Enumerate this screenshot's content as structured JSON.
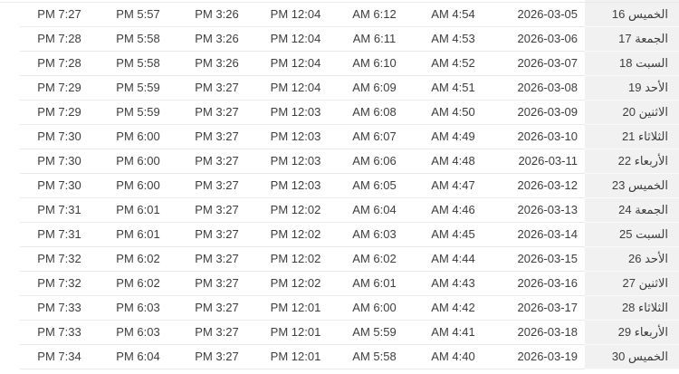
{
  "colors": {
    "text": "#3d3d3d",
    "row_border": "#e9e9e9",
    "day_column_bg": "#f1f1f1",
    "day_column_border": "#fbfbfb"
  },
  "table": {
    "rows": [
      {
        "isha": "PM 7:27",
        "maghrib": "PM 5:57",
        "asr": "PM 3:26",
        "dhuhr": "PM 12:04",
        "sunrise": "AM 6:12",
        "fajr": "AM 4:54",
        "date": "2026-03-05",
        "day_num": "16",
        "day_name": "الخميس"
      },
      {
        "isha": "PM 7:28",
        "maghrib": "PM 5:58",
        "asr": "PM 3:26",
        "dhuhr": "PM 12:04",
        "sunrise": "AM 6:11",
        "fajr": "AM 4:53",
        "date": "2026-03-06",
        "day_num": "17",
        "day_name": "الجمعة"
      },
      {
        "isha": "PM 7:28",
        "maghrib": "PM 5:58",
        "asr": "PM 3:26",
        "dhuhr": "PM 12:04",
        "sunrise": "AM 6:10",
        "fajr": "AM 4:52",
        "date": "2026-03-07",
        "day_num": "18",
        "day_name": "السبت"
      },
      {
        "isha": "PM 7:29",
        "maghrib": "PM 5:59",
        "asr": "PM 3:27",
        "dhuhr": "PM 12:04",
        "sunrise": "AM 6:09",
        "fajr": "AM 4:51",
        "date": "2026-03-08",
        "day_num": "19",
        "day_name": "الأحد"
      },
      {
        "isha": "PM 7:29",
        "maghrib": "PM 5:59",
        "asr": "PM 3:27",
        "dhuhr": "PM 12:03",
        "sunrise": "AM 6:08",
        "fajr": "AM 4:50",
        "date": "2026-03-09",
        "day_num": "20",
        "day_name": "الاثنين"
      },
      {
        "isha": "PM 7:30",
        "maghrib": "PM 6:00",
        "asr": "PM 3:27",
        "dhuhr": "PM 12:03",
        "sunrise": "AM 6:07",
        "fajr": "AM 4:49",
        "date": "2026-03-10",
        "day_num": "21",
        "day_name": "الثلاثاء"
      },
      {
        "isha": "PM 7:30",
        "maghrib": "PM 6:00",
        "asr": "PM 3:27",
        "dhuhr": "PM 12:03",
        "sunrise": "AM 6:06",
        "fajr": "AM 4:48",
        "date": "2026-03-11",
        "day_num": "22",
        "day_name": "الأربعاء"
      },
      {
        "isha": "PM 7:30",
        "maghrib": "PM 6:00",
        "asr": "PM 3:27",
        "dhuhr": "PM 12:03",
        "sunrise": "AM 6:05",
        "fajr": "AM 4:47",
        "date": "2026-03-12",
        "day_num": "23",
        "day_name": "الخميس"
      },
      {
        "isha": "PM 7:31",
        "maghrib": "PM 6:01",
        "asr": "PM 3:27",
        "dhuhr": "PM 12:02",
        "sunrise": "AM 6:04",
        "fajr": "AM 4:46",
        "date": "2026-03-13",
        "day_num": "24",
        "day_name": "الجمعة"
      },
      {
        "isha": "PM 7:31",
        "maghrib": "PM 6:01",
        "asr": "PM 3:27",
        "dhuhr": "PM 12:02",
        "sunrise": "AM 6:03",
        "fajr": "AM 4:45",
        "date": "2026-03-14",
        "day_num": "25",
        "day_name": "السبت"
      },
      {
        "isha": "PM 7:32",
        "maghrib": "PM 6:02",
        "asr": "PM 3:27",
        "dhuhr": "PM 12:02",
        "sunrise": "AM 6:02",
        "fajr": "AM 4:44",
        "date": "2026-03-15",
        "day_num": "26",
        "day_name": "الأحد"
      },
      {
        "isha": "PM 7:32",
        "maghrib": "PM 6:02",
        "asr": "PM 3:27",
        "dhuhr": "PM 12:02",
        "sunrise": "AM 6:01",
        "fajr": "AM 4:43",
        "date": "2026-03-16",
        "day_num": "27",
        "day_name": "الاثنين"
      },
      {
        "isha": "PM 7:33",
        "maghrib": "PM 6:03",
        "asr": "PM 3:27",
        "dhuhr": "PM 12:01",
        "sunrise": "AM 6:00",
        "fajr": "AM 4:42",
        "date": "2026-03-17",
        "day_num": "28",
        "day_name": "الثلاثاء"
      },
      {
        "isha": "PM 7:33",
        "maghrib": "PM 6:03",
        "asr": "PM 3:27",
        "dhuhr": "PM 12:01",
        "sunrise": "AM 5:59",
        "fajr": "AM 4:41",
        "date": "2026-03-18",
        "day_num": "29",
        "day_name": "الأربعاء"
      },
      {
        "isha": "PM 7:34",
        "maghrib": "PM 6:04",
        "asr": "PM 3:27",
        "dhuhr": "PM 12:01",
        "sunrise": "AM 5:58",
        "fajr": "AM 4:40",
        "date": "2026-03-19",
        "day_num": "30",
        "day_name": "الخميس"
      }
    ]
  }
}
